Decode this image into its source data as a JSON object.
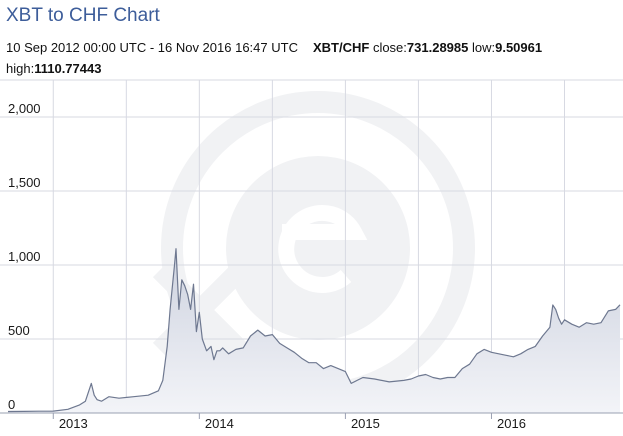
{
  "header": {
    "title": "XBT to CHF Chart",
    "date_range": "10 Sep 2012 00:00 UTC - 16 Nov 2016 16:47 UTC",
    "pair": "XBT/CHF",
    "close_label": "close:",
    "close_value": "731.28985",
    "low_label": "low:",
    "low_value": "9.50961",
    "high_label": "high:",
    "high_value": "1110.77443"
  },
  "colors": {
    "title": "#3d5d9a",
    "line": "#6e7890",
    "fill_top": "#cdd2df",
    "fill_bottom": "#f3f4f8",
    "grid": "#d7d9e2",
    "watermark": "#f1f2f4"
  },
  "watermark_icon": "xe-logo-icon",
  "chart_data": {
    "type": "area",
    "title": "XBT to CHF Chart",
    "xlabel": "",
    "ylabel": "",
    "ylim": [
      0,
      2250
    ],
    "xlim": [
      2012.69,
      2016.88
    ],
    "grid": true,
    "legend": "none",
    "y_ticks": [
      {
        "value": 0,
        "label": "0"
      },
      {
        "value": 500,
        "label": "500"
      },
      {
        "value": 1000,
        "label": "1,000"
      },
      {
        "value": 1500,
        "label": "1,500"
      },
      {
        "value": 2000,
        "label": "2,000"
      }
    ],
    "x_ticks": [
      {
        "value": 2013.0,
        "label": "2013"
      },
      {
        "value": 2014.0,
        "label": "2014"
      },
      {
        "value": 2015.0,
        "label": "2015"
      },
      {
        "value": 2016.0,
        "label": "2016"
      }
    ],
    "x_gridlines": [
      2013.0,
      2013.5,
      2014.0,
      2014.5,
      2015.0,
      2015.5,
      2016.0,
      2016.5
    ],
    "series": [
      {
        "x": [
          2012.69,
          2012.8,
          2012.9,
          2013.0,
          2013.1,
          2013.18,
          2013.22,
          2013.26,
          2013.28,
          2013.3,
          2013.33,
          2013.38,
          2013.45,
          2013.55,
          2013.65,
          2013.72,
          2013.75,
          2013.78,
          2013.8,
          2013.83,
          2013.84,
          2013.86,
          2013.88,
          2013.9,
          2013.92,
          2013.94,
          2013.96,
          2013.98,
          2014.0,
          2014.02,
          2014.05,
          2014.08,
          2014.1,
          2014.12,
          2014.14,
          2014.16,
          2014.2,
          2014.25,
          2014.3,
          2014.35,
          2014.4,
          2014.45,
          2014.5,
          2014.55,
          2014.6,
          2014.65,
          2014.7,
          2014.75,
          2014.8,
          2014.85,
          2014.9,
          2014.95,
          2015.0,
          2015.04,
          2015.08,
          2015.12,
          2015.2,
          2015.3,
          2015.4,
          2015.45,
          2015.5,
          2015.55,
          2015.6,
          2015.65,
          2015.7,
          2015.75,
          2015.8,
          2015.85,
          2015.9,
          2015.95,
          2016.0,
          2016.05,
          2016.1,
          2016.15,
          2016.2,
          2016.25,
          2016.3,
          2016.35,
          2016.4,
          2016.42,
          2016.44,
          2016.46,
          2016.48,
          2016.5,
          2016.55,
          2016.6,
          2016.65,
          2016.7,
          2016.75,
          2016.8,
          2016.85,
          2016.88
        ],
        "values": [
          10,
          11,
          12,
          13,
          25,
          55,
          80,
          200,
          120,
          90,
          80,
          110,
          100,
          110,
          120,
          150,
          220,
          450,
          700,
          1000,
          1110,
          700,
          900,
          860,
          800,
          700,
          870,
          550,
          680,
          500,
          420,
          450,
          360,
          420,
          420,
          440,
          400,
          430,
          440,
          520,
          560,
          520,
          530,
          470,
          440,
          410,
          370,
          340,
          340,
          300,
          320,
          300,
          280,
          200,
          220,
          240,
          230,
          210,
          220,
          230,
          250,
          260,
          240,
          230,
          240,
          240,
          300,
          330,
          400,
          430,
          410,
          400,
          390,
          380,
          400,
          430,
          450,
          520,
          580,
          730,
          700,
          640,
          600,
          630,
          600,
          580,
          610,
          600,
          610,
          690,
          700,
          731
        ]
      }
    ]
  }
}
